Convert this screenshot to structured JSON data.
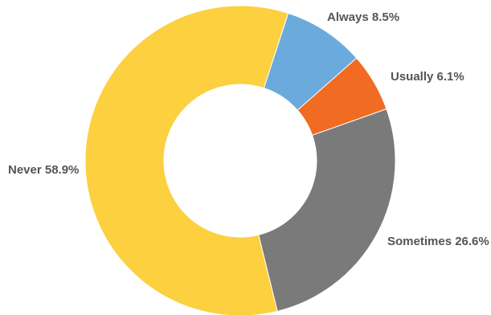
{
  "chart_data": {
    "type": "pie",
    "style": "donut",
    "title": "",
    "slices": [
      {
        "label": "Always 8.5%",
        "category": "Always",
        "value": 8.5,
        "color": "#6AAADC"
      },
      {
        "label": "Usually 6.1%",
        "category": "Usually",
        "value": 6.1,
        "color": "#F26B22"
      },
      {
        "label": "Sometimes 26.6%",
        "category": "Sometimes",
        "value": 26.6,
        "color": "#7A7A7A"
      },
      {
        "label": "Never 58.9%",
        "category": "Never",
        "value": 58.9,
        "color": "#FCD03F"
      }
    ],
    "start_angle_deg": 18,
    "direction": "clockwise",
    "legend": "none"
  }
}
